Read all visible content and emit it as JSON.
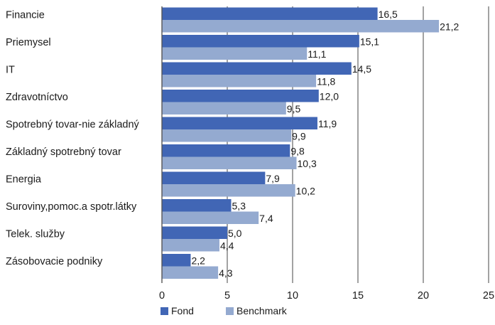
{
  "chart_data": {
    "type": "bar",
    "orientation": "horizontal",
    "categories": [
      "Financie",
      "Priemysel",
      "IT",
      "Zdravotníctvo",
      "Spotrebný tovar-nie základný",
      "Základný spotrebný tovar",
      "Energia",
      "Suroviny,pomoc.a spotr.látky",
      "Telek. služby",
      "Zásobovacie podniky"
    ],
    "series": [
      {
        "name": "Fond",
        "color": "#4166b5",
        "values": [
          16.5,
          15.1,
          14.5,
          12.0,
          11.9,
          9.8,
          7.9,
          5.3,
          5.0,
          2.2
        ],
        "labels": [
          "16,5",
          "15,1",
          "14,5",
          "12,0",
          "11,9",
          "9,8",
          "7,9",
          "5,3",
          "5,0",
          "2,2"
        ]
      },
      {
        "name": "Benchmark",
        "color": "#94aad0",
        "values": [
          21.2,
          11.1,
          11.8,
          9.5,
          9.9,
          10.3,
          10.2,
          7.4,
          4.4,
          4.3
        ],
        "labels": [
          "21,2",
          "11,1",
          "11,8",
          "9,5",
          "9,9",
          "10,3",
          "10,2",
          "7,4",
          "4,4",
          "4,3"
        ]
      }
    ],
    "xlim": [
      0,
      25
    ],
    "xticks": [
      0,
      5,
      10,
      15,
      20,
      25
    ],
    "grid": true,
    "legend": "bottom",
    "title": "",
    "xlabel": "",
    "ylabel": ""
  }
}
